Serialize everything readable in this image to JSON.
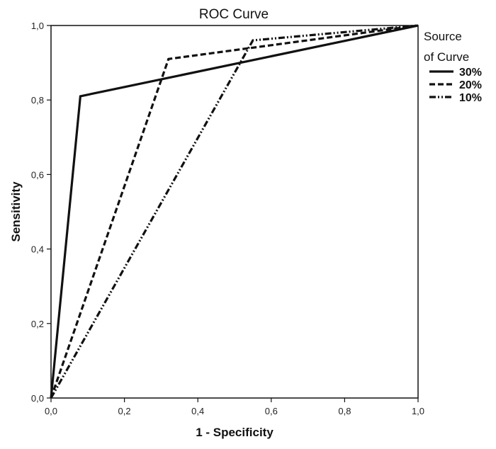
{
  "chart_data": {
    "type": "line",
    "title": "ROC Curve",
    "xlabel": "1 - Specificity",
    "ylabel": "Sensitivity",
    "xlim": [
      0,
      1
    ],
    "ylim": [
      0,
      1
    ],
    "x_ticks": [
      "0,0",
      "0,2",
      "0,4",
      "0,6",
      "0,8",
      "1,0"
    ],
    "y_ticks": [
      "0,0",
      "0,2",
      "0,4",
      "0,6",
      "0,8",
      "1,0"
    ],
    "grid": false,
    "legend": {
      "title_line1": "Source",
      "title_line2": "of Curve",
      "placement": "right"
    },
    "series": [
      {
        "name": "30%",
        "style": "solid",
        "x": [
          0,
          0.08,
          1
        ],
        "y": [
          0,
          0.81,
          1
        ]
      },
      {
        "name": "20%",
        "style": "dashed",
        "x": [
          0,
          0.32,
          1
        ],
        "y": [
          0,
          0.91,
          1
        ]
      },
      {
        "name": "10%",
        "style": "dash-dot-dot",
        "x": [
          0,
          0.55,
          1
        ],
        "y": [
          0,
          0.96,
          1
        ]
      }
    ],
    "line_color": "#111111"
  }
}
